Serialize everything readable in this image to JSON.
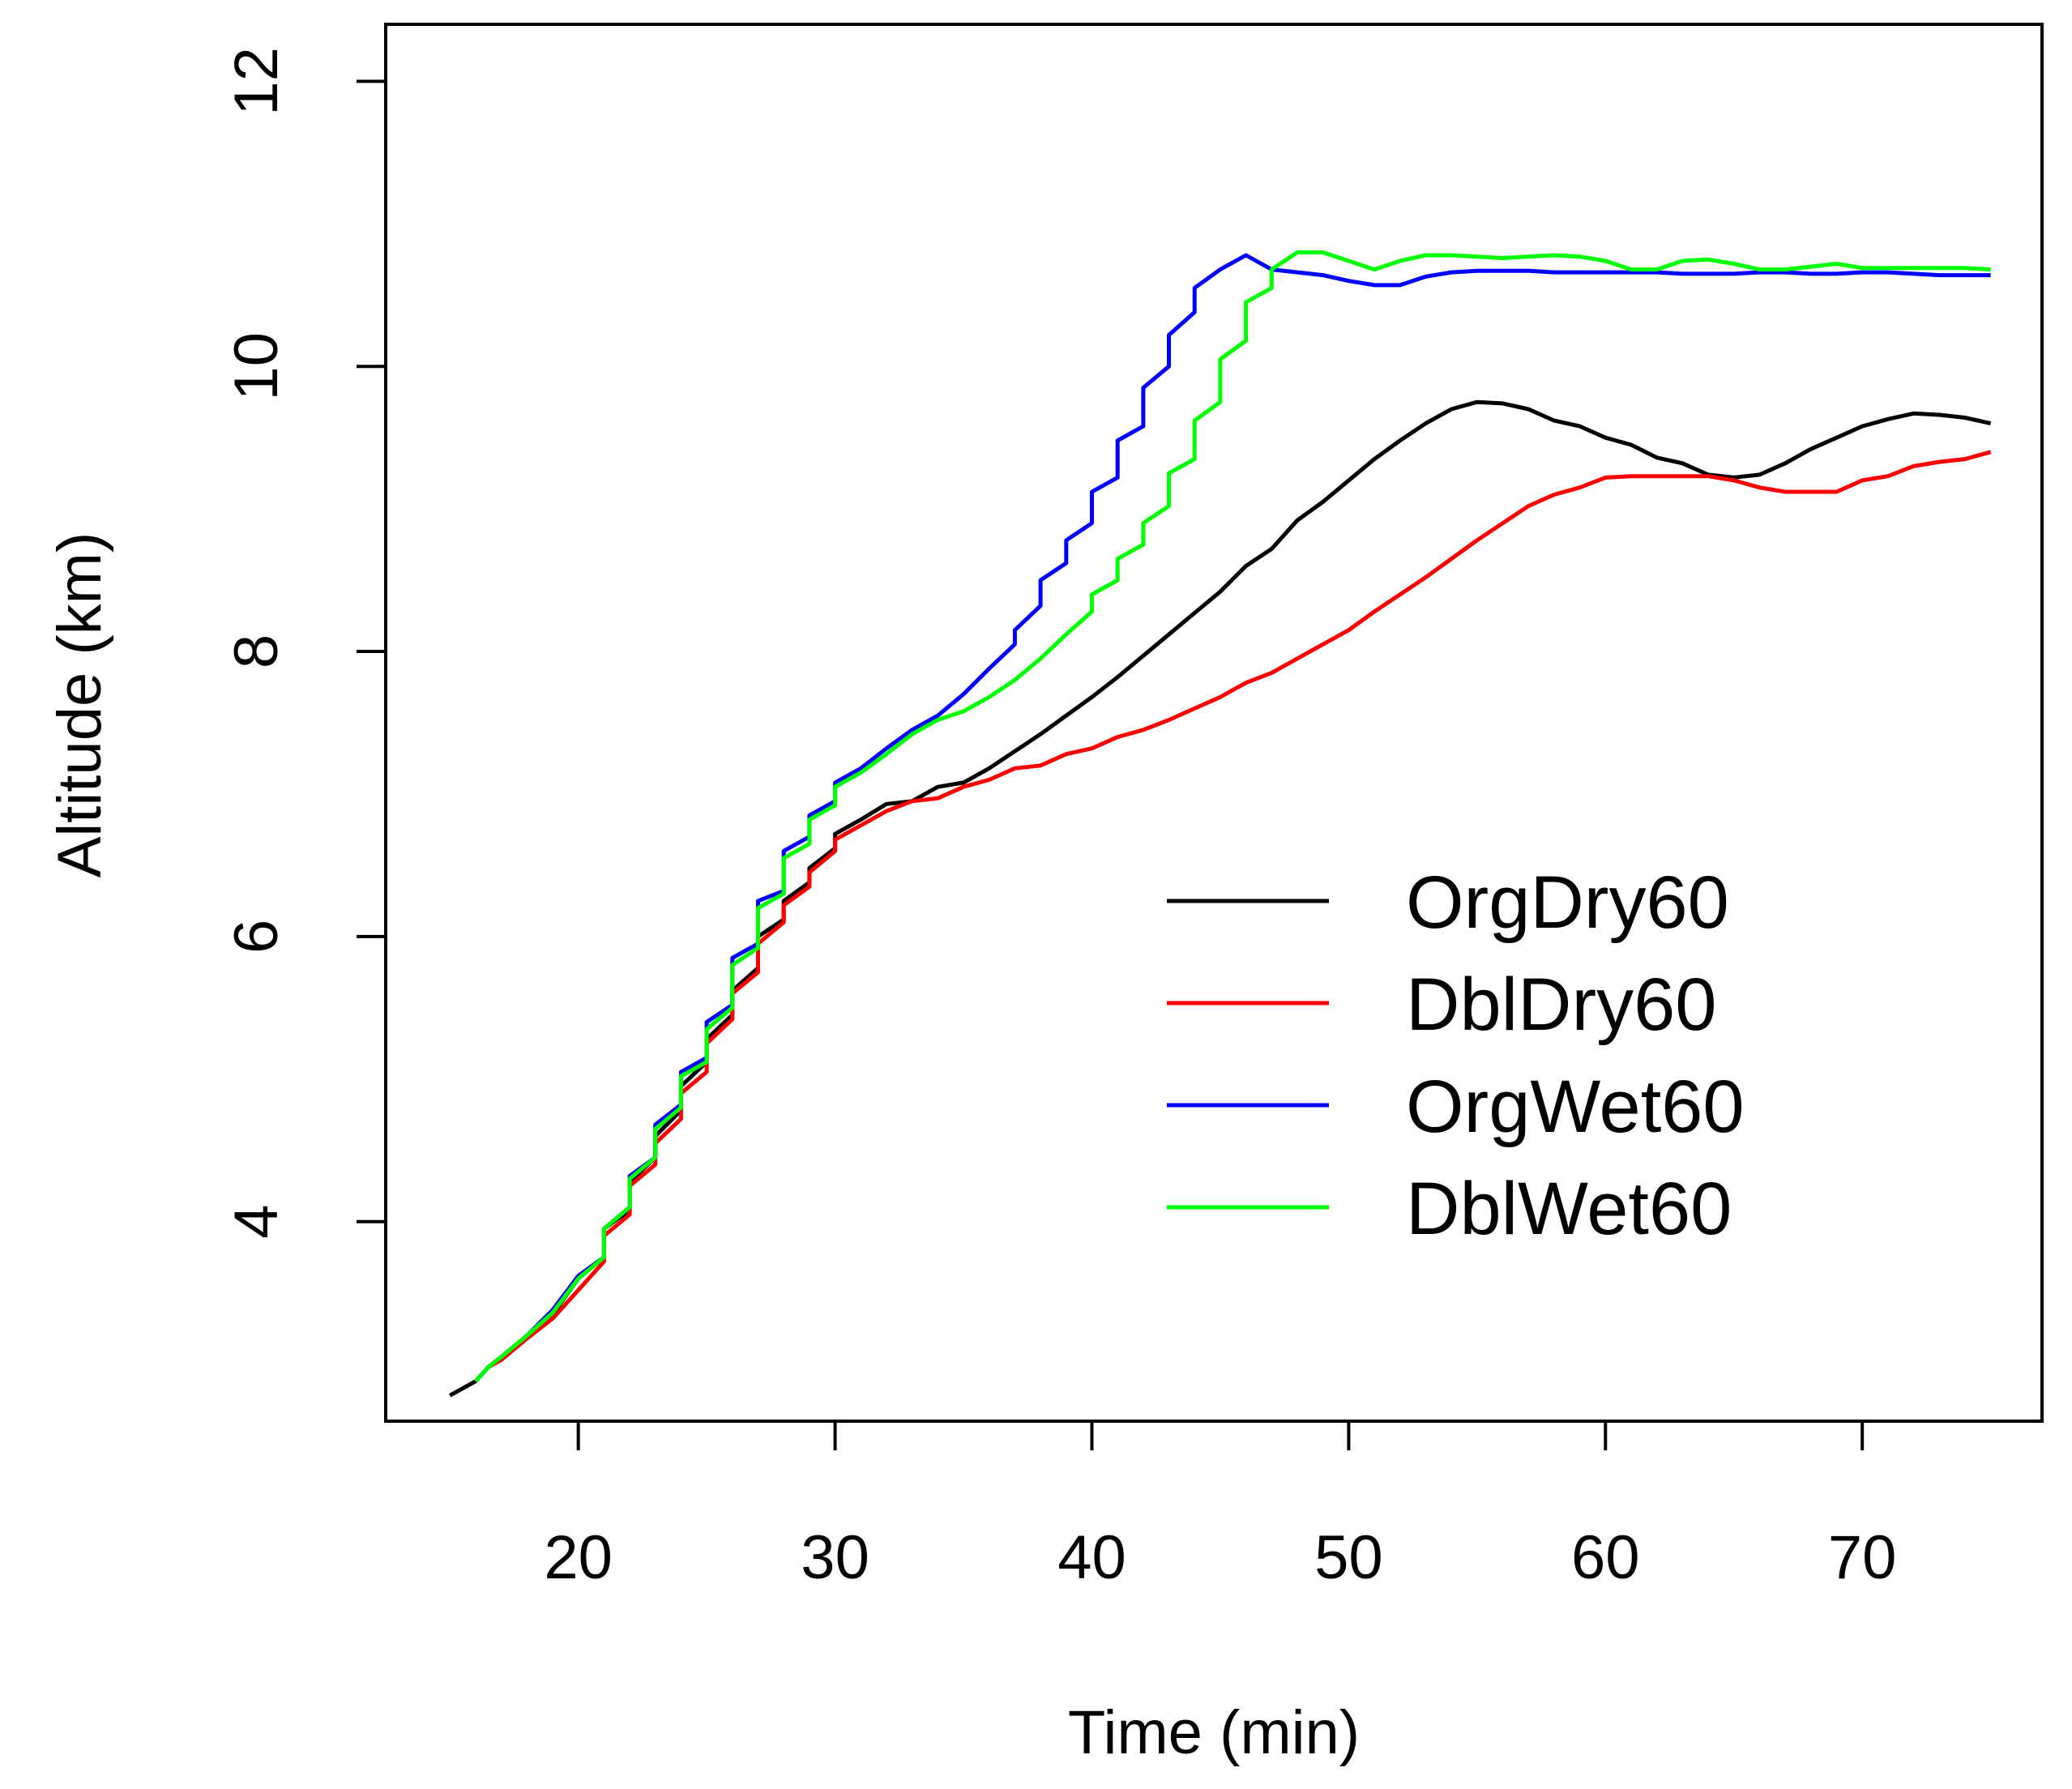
{
  "chart_data": {
    "type": "line",
    "title": "",
    "xlabel": "Time (min)",
    "ylabel": "Altitude (km)",
    "xlim": [
      12.5,
      77
    ],
    "ylim": [
      2.6,
      12.4
    ],
    "xticks": [
      20,
      30,
      40,
      50,
      60,
      70
    ],
    "yticks": [
      4,
      6,
      8,
      10,
      12
    ],
    "xtick_labels": [
      "20",
      "30",
      "40",
      "50",
      "60",
      "70"
    ],
    "ytick_labels": [
      "4",
      "6",
      "8",
      "10",
      "12"
    ],
    "grid": false,
    "legend_position": "bottom-right",
    "series": [
      {
        "name": "OrgDry60",
        "color": "#000000",
        "points": [
          [
            15,
            2.78
          ],
          [
            16,
            2.88
          ],
          [
            16.5,
            2.98
          ],
          [
            17,
            3.05
          ],
          [
            18,
            3.2
          ],
          [
            19,
            3.35
          ],
          [
            20,
            3.6
          ],
          [
            21,
            3.75
          ],
          [
            21,
            3.95
          ],
          [
            22,
            4.08
          ],
          [
            22,
            4.28
          ],
          [
            23,
            4.45
          ],
          [
            23,
            4.6
          ],
          [
            24,
            4.78
          ],
          [
            24,
            4.95
          ],
          [
            25,
            5.12
          ],
          [
            25,
            5.28
          ],
          [
            26,
            5.45
          ],
          [
            26,
            5.62
          ],
          [
            27,
            5.78
          ],
          [
            27,
            6.0
          ],
          [
            28,
            6.12
          ],
          [
            28,
            6.25
          ],
          [
            29,
            6.38
          ],
          [
            29,
            6.48
          ],
          [
            30,
            6.62
          ],
          [
            30,
            6.72
          ],
          [
            31,
            6.82
          ],
          [
            32,
            6.93
          ],
          [
            33,
            6.95
          ],
          [
            34,
            7.05
          ],
          [
            35,
            7.08
          ],
          [
            36,
            7.18
          ],
          [
            37,
            7.3
          ],
          [
            38,
            7.42
          ],
          [
            39,
            7.55
          ],
          [
            40,
            7.68
          ],
          [
            41,
            7.82
          ],
          [
            42,
            7.97
          ],
          [
            43,
            8.12
          ],
          [
            44,
            8.27
          ],
          [
            45,
            8.42
          ],
          [
            46,
            8.6
          ],
          [
            47,
            8.72
          ],
          [
            48,
            8.92
          ],
          [
            49,
            9.05
          ],
          [
            50,
            9.2
          ],
          [
            51,
            9.35
          ],
          [
            52,
            9.48
          ],
          [
            53,
            9.6
          ],
          [
            54,
            9.7
          ],
          [
            55,
            9.75
          ],
          [
            56,
            9.74
          ],
          [
            57,
            9.7
          ],
          [
            58,
            9.62
          ],
          [
            59,
            9.58
          ],
          [
            60,
            9.5
          ],
          [
            61,
            9.45
          ],
          [
            62,
            9.36
          ],
          [
            63,
            9.32
          ],
          [
            64,
            9.24
          ],
          [
            65,
            9.22
          ],
          [
            66,
            9.24
          ],
          [
            67,
            9.32
          ],
          [
            68,
            9.42
          ],
          [
            69,
            9.5
          ],
          [
            70,
            9.58
          ],
          [
            71,
            9.63
          ],
          [
            72,
            9.67
          ],
          [
            73,
            9.66
          ],
          [
            74,
            9.64
          ],
          [
            75,
            9.6
          ]
        ]
      },
      {
        "name": "DblDry60",
        "color": "#ff0000",
        "points": [
          [
            16,
            2.88
          ],
          [
            16.5,
            2.98
          ],
          [
            17,
            3.03
          ],
          [
            18,
            3.18
          ],
          [
            19,
            3.32
          ],
          [
            20,
            3.52
          ],
          [
            21,
            3.72
          ],
          [
            21,
            3.9
          ],
          [
            22,
            4.05
          ],
          [
            22,
            4.25
          ],
          [
            23,
            4.4
          ],
          [
            23,
            4.55
          ],
          [
            24,
            4.72
          ],
          [
            24,
            4.9
          ],
          [
            25,
            5.05
          ],
          [
            25,
            5.25
          ],
          [
            26,
            5.42
          ],
          [
            26,
            5.6
          ],
          [
            27,
            5.75
          ],
          [
            27,
            5.95
          ],
          [
            28,
            6.1
          ],
          [
            28,
            6.22
          ],
          [
            29,
            6.35
          ],
          [
            29,
            6.45
          ],
          [
            30,
            6.6
          ],
          [
            30,
            6.68
          ],
          [
            31,
            6.78
          ],
          [
            32,
            6.88
          ],
          [
            33,
            6.95
          ],
          [
            34,
            6.97
          ],
          [
            35,
            7.05
          ],
          [
            36,
            7.1
          ],
          [
            37,
            7.18
          ],
          [
            38,
            7.2
          ],
          [
            39,
            7.28
          ],
          [
            40,
            7.32
          ],
          [
            41,
            7.4
          ],
          [
            42,
            7.45
          ],
          [
            43,
            7.52
          ],
          [
            44,
            7.6
          ],
          [
            45,
            7.68
          ],
          [
            46,
            7.78
          ],
          [
            47,
            7.85
          ],
          [
            48,
            7.95
          ],
          [
            49,
            8.05
          ],
          [
            50,
            8.15
          ],
          [
            51,
            8.28
          ],
          [
            52,
            8.4
          ],
          [
            53,
            8.52
          ],
          [
            54,
            8.65
          ],
          [
            55,
            8.78
          ],
          [
            56,
            8.9
          ],
          [
            57,
            9.02
          ],
          [
            58,
            9.1
          ],
          [
            59,
            9.15
          ],
          [
            60,
            9.22
          ],
          [
            61,
            9.23
          ],
          [
            62,
            9.23
          ],
          [
            63,
            9.23
          ],
          [
            64,
            9.23
          ],
          [
            65,
            9.2
          ],
          [
            66,
            9.15
          ],
          [
            67,
            9.12
          ],
          [
            68,
            9.12
          ],
          [
            69,
            9.12
          ],
          [
            70,
            9.2
          ],
          [
            71,
            9.23
          ],
          [
            72,
            9.3
          ],
          [
            73,
            9.33
          ],
          [
            74,
            9.35
          ],
          [
            75,
            9.4
          ]
        ]
      },
      {
        "name": "OrgWet60",
        "color": "#0000ff",
        "points": [
          [
            16,
            2.88
          ],
          [
            16.5,
            2.98
          ],
          [
            17,
            3.05
          ],
          [
            18,
            3.2
          ],
          [
            19,
            3.38
          ],
          [
            20,
            3.62
          ],
          [
            21,
            3.75
          ],
          [
            21,
            3.95
          ],
          [
            22,
            4.1
          ],
          [
            22,
            4.32
          ],
          [
            23,
            4.45
          ],
          [
            23,
            4.68
          ],
          [
            24,
            4.82
          ],
          [
            24,
            5.05
          ],
          [
            25,
            5.15
          ],
          [
            25,
            5.4
          ],
          [
            26,
            5.52
          ],
          [
            26,
            5.85
          ],
          [
            27,
            5.95
          ],
          [
            27,
            6.25
          ],
          [
            28,
            6.32
          ],
          [
            28,
            6.6
          ],
          [
            29,
            6.7
          ],
          [
            29,
            6.85
          ],
          [
            30,
            6.95
          ],
          [
            30,
            7.08
          ],
          [
            31,
            7.18
          ],
          [
            32,
            7.32
          ],
          [
            33,
            7.45
          ],
          [
            34,
            7.55
          ],
          [
            35,
            7.7
          ],
          [
            36,
            7.88
          ],
          [
            37,
            8.05
          ],
          [
            37,
            8.15
          ],
          [
            38,
            8.32
          ],
          [
            38,
            8.5
          ],
          [
            39,
            8.62
          ],
          [
            39,
            8.78
          ],
          [
            40,
            8.9
          ],
          [
            40,
            9.12
          ],
          [
            41,
            9.22
          ],
          [
            41,
            9.48
          ],
          [
            42,
            9.58
          ],
          [
            42,
            9.85
          ],
          [
            43,
            10.0
          ],
          [
            43,
            10.22
          ],
          [
            44,
            10.38
          ],
          [
            44,
            10.55
          ],
          [
            45,
            10.68
          ],
          [
            46,
            10.78
          ],
          [
            47,
            10.68
          ],
          [
            48,
            10.66
          ],
          [
            49,
            10.64
          ],
          [
            50,
            10.6
          ],
          [
            51,
            10.57
          ],
          [
            52,
            10.57
          ],
          [
            53,
            10.63
          ],
          [
            54,
            10.66
          ],
          [
            55,
            10.67
          ],
          [
            56,
            10.67
          ],
          [
            57,
            10.67
          ],
          [
            58,
            10.66
          ],
          [
            59,
            10.66
          ],
          [
            60,
            10.66
          ],
          [
            61,
            10.66
          ],
          [
            62,
            10.66
          ],
          [
            63,
            10.65
          ],
          [
            64,
            10.65
          ],
          [
            65,
            10.65
          ],
          [
            66,
            10.66
          ],
          [
            67,
            10.66
          ],
          [
            68,
            10.65
          ],
          [
            69,
            10.65
          ],
          [
            70,
            10.66
          ],
          [
            71,
            10.66
          ],
          [
            72,
            10.65
          ],
          [
            73,
            10.64
          ],
          [
            74,
            10.64
          ],
          [
            75,
            10.64
          ]
        ]
      },
      {
        "name": "DblWet60",
        "color": "#00ff00",
        "points": [
          [
            16,
            2.88
          ],
          [
            16.5,
            2.98
          ],
          [
            17,
            3.05
          ],
          [
            18,
            3.2
          ],
          [
            19,
            3.36
          ],
          [
            20,
            3.6
          ],
          [
            21,
            3.75
          ],
          [
            21,
            3.95
          ],
          [
            22,
            4.1
          ],
          [
            22,
            4.3
          ],
          [
            23,
            4.45
          ],
          [
            23,
            4.65
          ],
          [
            24,
            4.8
          ],
          [
            24,
            5.02
          ],
          [
            25,
            5.12
          ],
          [
            25,
            5.35
          ],
          [
            26,
            5.5
          ],
          [
            26,
            5.8
          ],
          [
            27,
            5.92
          ],
          [
            27,
            6.2
          ],
          [
            28,
            6.3
          ],
          [
            28,
            6.55
          ],
          [
            29,
            6.65
          ],
          [
            29,
            6.82
          ],
          [
            30,
            6.92
          ],
          [
            30,
            7.05
          ],
          [
            31,
            7.15
          ],
          [
            32,
            7.28
          ],
          [
            33,
            7.42
          ],
          [
            34,
            7.52
          ],
          [
            35,
            7.58
          ],
          [
            36,
            7.68
          ],
          [
            37,
            7.8
          ],
          [
            38,
            7.95
          ],
          [
            39,
            8.12
          ],
          [
            40,
            8.28
          ],
          [
            40,
            8.4
          ],
          [
            41,
            8.5
          ],
          [
            41,
            8.65
          ],
          [
            42,
            8.75
          ],
          [
            42,
            8.9
          ],
          [
            43,
            9.02
          ],
          [
            43,
            9.25
          ],
          [
            44,
            9.35
          ],
          [
            44,
            9.62
          ],
          [
            45,
            9.75
          ],
          [
            45,
            10.05
          ],
          [
            46,
            10.18
          ],
          [
            46,
            10.45
          ],
          [
            47,
            10.55
          ],
          [
            47,
            10.68
          ],
          [
            48,
            10.8
          ],
          [
            49,
            10.8
          ],
          [
            50,
            10.74
          ],
          [
            51,
            10.68
          ],
          [
            52,
            10.74
          ],
          [
            53,
            10.78
          ],
          [
            54,
            10.78
          ],
          [
            55,
            10.77
          ],
          [
            56,
            10.76
          ],
          [
            57,
            10.77
          ],
          [
            58,
            10.78
          ],
          [
            59,
            10.77
          ],
          [
            60,
            10.74
          ],
          [
            61,
            10.68
          ],
          [
            62,
            10.68
          ],
          [
            63,
            10.74
          ],
          [
            64,
            10.75
          ],
          [
            65,
            10.72
          ],
          [
            66,
            10.68
          ],
          [
            67,
            10.68
          ],
          [
            68,
            10.7
          ],
          [
            69,
            10.72
          ],
          [
            70,
            10.69
          ],
          [
            71,
            10.69
          ],
          [
            72,
            10.69
          ],
          [
            73,
            10.69
          ],
          [
            74,
            10.69
          ],
          [
            75,
            10.68
          ]
        ]
      }
    ]
  }
}
